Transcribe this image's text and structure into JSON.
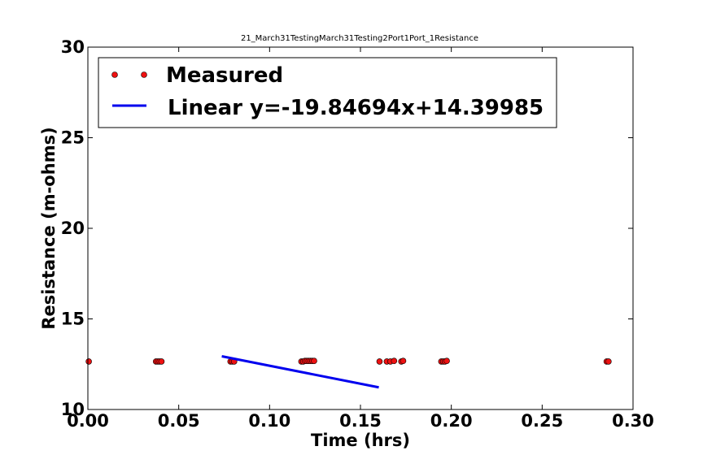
{
  "chart_data": {
    "type": "scatter",
    "title": "21_March31TestingMarch31Testing2Port1Port_1Resistance",
    "xlabel": "Time (hrs)",
    "ylabel": "Resistance (m-ohms)",
    "xlim": [
      0.0,
      0.3
    ],
    "ylim": [
      10,
      30
    ],
    "xticks": [
      0.0,
      0.05,
      0.1,
      0.15,
      0.2,
      0.25,
      0.3
    ],
    "xtick_labels": [
      "0.00",
      "0.05",
      "0.10",
      "0.15",
      "0.20",
      "0.25",
      "0.30"
    ],
    "yticks": [
      10,
      15,
      20,
      25,
      30
    ],
    "ytick_labels": [
      "10",
      "15",
      "20",
      "25",
      "30"
    ],
    "legend_position": "top-left",
    "series": [
      {
        "name": "Measured",
        "kind": "markers",
        "color": "#ee1111",
        "x": [
          0.0005,
          0.0375,
          0.0385,
          0.0395,
          0.0405,
          0.0785,
          0.0795,
          0.0805,
          0.1175,
          0.1185,
          0.1195,
          0.1205,
          0.1215,
          0.1225,
          0.1235,
          0.1245,
          0.1605,
          0.1645,
          0.1665,
          0.1685,
          0.1725,
          0.1735,
          0.1945,
          0.1955,
          0.1965,
          0.1975,
          0.2855,
          0.2865
        ],
        "y": [
          12.65,
          12.65,
          12.65,
          12.65,
          12.65,
          12.65,
          12.65,
          12.65,
          12.65,
          12.65,
          12.68,
          12.68,
          12.68,
          12.68,
          12.68,
          12.68,
          12.65,
          12.65,
          12.65,
          12.68,
          12.65,
          12.68,
          12.65,
          12.65,
          12.65,
          12.68,
          12.65,
          12.65
        ]
      },
      {
        "name": "Linear y=-19.84694x+14.39985",
        "kind": "line",
        "color": "#0000ee",
        "x": [
          0.0737,
          0.1601
        ],
        "y": [
          12.937,
          11.222
        ]
      }
    ]
  }
}
